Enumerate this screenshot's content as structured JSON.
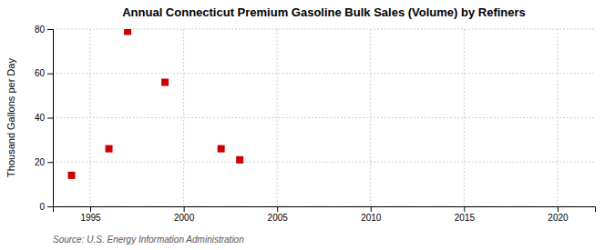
{
  "chart_data": {
    "type": "scatter",
    "title": "Annual Connecticut Premium Gasoline Bulk Sales (Volume) by Refiners",
    "ylabel": "Thousand Gallons per Day",
    "annotations": [
      "Source: U.S. Energy Information Administration"
    ],
    "x": [
      1994,
      1996,
      1997,
      1999,
      2002,
      2003
    ],
    "values": [
      14.0,
      26.0,
      79.0,
      56.0,
      26.0,
      21.0
    ],
    "color": "#cc0000",
    "marker": "square",
    "xlim": [
      1993,
      2022
    ],
    "ylim": [
      0,
      80
    ],
    "xticks": [
      1995,
      2000,
      2005,
      2010,
      2015,
      2020
    ],
    "yticks": [
      0,
      20,
      40,
      60,
      80
    ],
    "grid": true
  }
}
